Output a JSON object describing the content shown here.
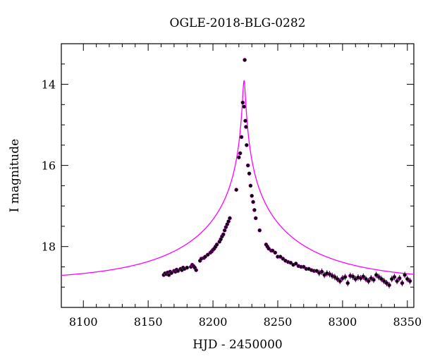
{
  "chart_data": {
    "type": "scatter",
    "title": "OGLE-2018-BLG-0282",
    "xlabel": "HJD - 2450000",
    "ylabel": "I magnitude",
    "xlim": [
      8083,
      8355
    ],
    "ylim": [
      13,
      19.5
    ],
    "y_inverted": true,
    "grid": false,
    "x_ticks": [
      8100,
      8150,
      8200,
      8250,
      8300,
      8350
    ],
    "y_ticks": [
      14,
      16,
      18
    ],
    "series": [
      {
        "kind": "points",
        "color": "#000000",
        "points": [
          [
            8162,
            18.7
          ],
          [
            8163,
            18.66
          ],
          [
            8164,
            18.68
          ],
          [
            8165,
            18.64
          ],
          [
            8166,
            18.7
          ],
          [
            8167,
            18.62
          ],
          [
            8168,
            18.65
          ],
          [
            8170,
            18.6
          ],
          [
            8171,
            18.62
          ],
          [
            8172,
            18.57
          ],
          [
            8173,
            18.6
          ],
          [
            8175,
            18.55
          ],
          [
            8176,
            18.58
          ],
          [
            8177,
            18.52
          ],
          [
            8178,
            18.55
          ],
          [
            8180,
            18.52
          ],
          [
            8183,
            18.5
          ],
          [
            8184,
            18.45
          ],
          [
            8185,
            18.48
          ],
          [
            8186,
            18.52
          ],
          [
            8187,
            18.58
          ],
          [
            8190,
            18.35
          ],
          [
            8191,
            18.3
          ],
          [
            8193,
            18.28
          ],
          [
            8194,
            18.25
          ],
          [
            8196,
            18.2
          ],
          [
            8198,
            18.15
          ],
          [
            8199,
            18.12
          ],
          [
            8200,
            18.08
          ],
          [
            8201,
            18.05
          ],
          [
            8202,
            18.0
          ],
          [
            8203,
            17.95
          ],
          [
            8205,
            17.88
          ],
          [
            8206,
            17.82
          ],
          [
            8207,
            17.75
          ],
          [
            8208,
            17.7
          ],
          [
            8209,
            17.6
          ],
          [
            8210,
            17.52
          ],
          [
            8211,
            17.45
          ],
          [
            8212,
            17.38
          ],
          [
            8213,
            17.3
          ],
          [
            8218,
            16.6
          ],
          [
            8220,
            15.8
          ],
          [
            8221,
            15.7
          ],
          [
            8222,
            15.3
          ],
          [
            8223,
            14.45
          ],
          [
            8224,
            14.55
          ],
          [
            8224.5,
            13.4
          ],
          [
            8225,
            14.9
          ],
          [
            8225.5,
            15.05
          ],
          [
            8226,
            15.5
          ],
          [
            8227,
            16.0
          ],
          [
            8228,
            16.2
          ],
          [
            8229,
            16.5
          ],
          [
            8230,
            16.75
          ],
          [
            8231,
            16.9
          ],
          [
            8232,
            17.1
          ],
          [
            8233,
            17.3
          ],
          [
            8236,
            17.6
          ],
          [
            8241,
            17.95
          ],
          [
            8242,
            18.0
          ],
          [
            8243,
            18.05
          ],
          [
            8245,
            18.1
          ],
          [
            8246,
            18.1
          ],
          [
            8248,
            18.15
          ],
          [
            8250,
            18.25
          ],
          [
            8252,
            18.25
          ],
          [
            8254,
            18.3
          ],
          [
            8256,
            18.35
          ],
          [
            8258,
            18.38
          ],
          [
            8260,
            18.4
          ],
          [
            8262,
            18.45
          ],
          [
            8264,
            18.42
          ],
          [
            8266,
            18.48
          ],
          [
            8268,
            18.5
          ],
          [
            8270,
            18.5
          ],
          [
            8272,
            18.55
          ],
          [
            8274,
            18.55
          ],
          [
            8276,
            18.58
          ],
          [
            8278,
            18.6
          ],
          [
            8280,
            18.6
          ],
          [
            8282,
            18.65
          ],
          [
            8284,
            18.62
          ],
          [
            8286,
            18.7
          ],
          [
            8288,
            18.66
          ],
          [
            8290,
            18.68
          ],
          [
            8292,
            18.72
          ],
          [
            8294,
            18.75
          ],
          [
            8296,
            18.8
          ],
          [
            8298,
            18.85
          ],
          [
            8300,
            18.78
          ],
          [
            8302,
            18.75
          ],
          [
            8304,
            18.9
          ],
          [
            8306,
            18.72
          ],
          [
            8308,
            18.74
          ],
          [
            8310,
            18.8
          ],
          [
            8312,
            18.76
          ],
          [
            8314,
            18.78
          ],
          [
            8316,
            18.74
          ],
          [
            8318,
            18.8
          ],
          [
            8320,
            18.85
          ],
          [
            8322,
            18.78
          ],
          [
            8324,
            18.82
          ],
          [
            8326,
            18.7
          ],
          [
            8328,
            18.75
          ],
          [
            8330,
            18.8
          ],
          [
            8332,
            18.85
          ],
          [
            8334,
            18.9
          ],
          [
            8336,
            18.95
          ],
          [
            8338,
            18.8
          ],
          [
            8340,
            18.75
          ],
          [
            8342,
            18.85
          ],
          [
            8344,
            18.78
          ],
          [
            8346,
            18.9
          ],
          [
            8348,
            18.7
          ],
          [
            8350,
            18.8
          ],
          [
            8352,
            18.85
          ]
        ]
      },
      {
        "kind": "model-curve",
        "color": "#ff00ff",
        "function": "paczynski",
        "t0": 8224,
        "u0": 0.0106,
        "tE": 95,
        "base_mag": 18.85,
        "x_range": [
          8083,
          8355
        ]
      }
    ]
  }
}
